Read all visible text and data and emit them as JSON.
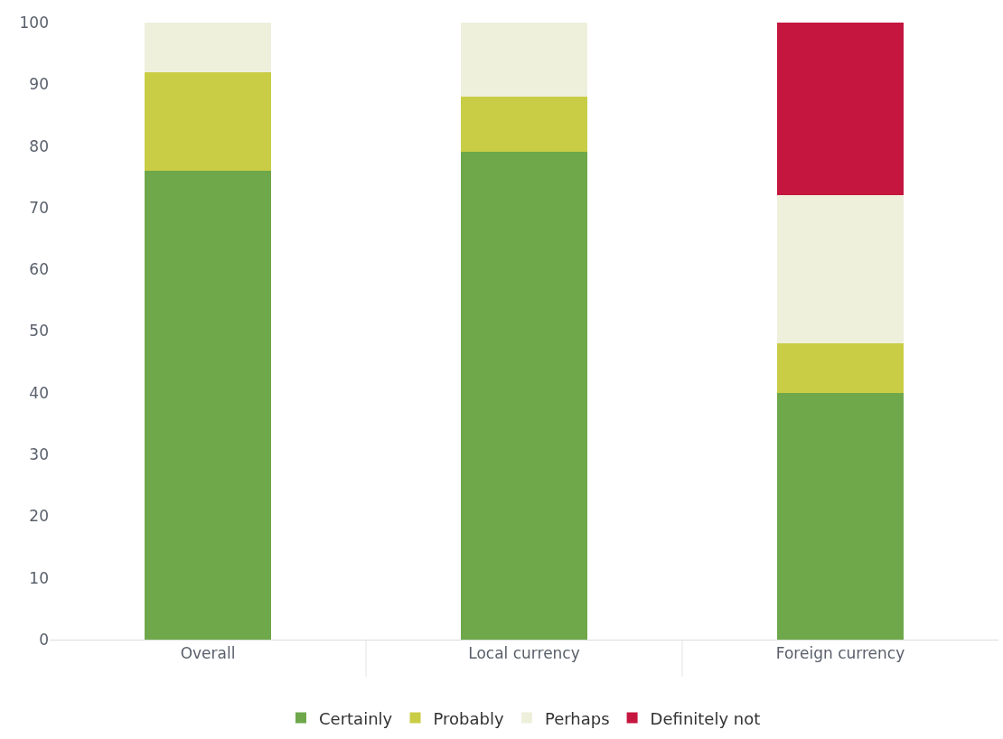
{
  "chart_data": {
    "type": "bar",
    "stacked": true,
    "categories": [
      "Overall",
      "Local currency",
      "Foreign currency"
    ],
    "series": [
      {
        "name": "Certainly",
        "color": "#6ea84a",
        "values": [
          76,
          79,
          40
        ]
      },
      {
        "name": "Probably",
        "color": "#c9cd45",
        "values": [
          16,
          9,
          8
        ]
      },
      {
        "name": "Perhaps",
        "color": "#eef0dc",
        "values": [
          8,
          12,
          24
        ]
      },
      {
        "name": "Definitely not",
        "color": "#c4163f",
        "values": [
          0,
          0,
          28
        ]
      }
    ],
    "ylim": [
      0,
      100
    ],
    "yticks": [
      0,
      10,
      20,
      30,
      40,
      50,
      60,
      70,
      80,
      90,
      100
    ],
    "grid": false,
    "legend": "bottom"
  }
}
